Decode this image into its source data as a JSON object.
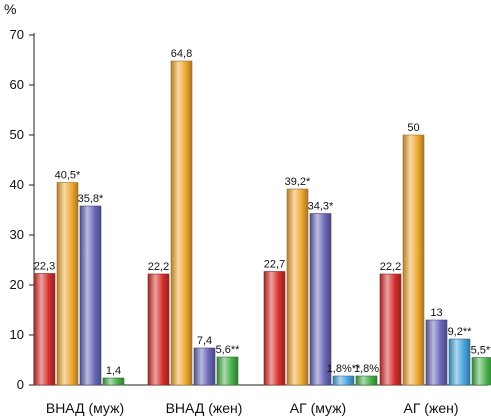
{
  "chart_data": {
    "type": "bar",
    "title": "",
    "xlabel": "",
    "ylabel": "%",
    "ylim": [
      0,
      70
    ],
    "yticks": [
      0,
      10,
      20,
      30,
      40,
      50,
      60,
      70
    ],
    "grid": false,
    "categories": [
      "ВНАД (муж)",
      "ВНАД (жен)",
      "АГ (муж)",
      "АГ (жен)"
    ],
    "series": [
      {
        "color": "#d6312e",
        "values": [
          22.3,
          22.2,
          22.7,
          22.2
        ],
        "labels": [
          "22,3",
          "22,2",
          "22,7",
          "22,2"
        ]
      },
      {
        "color": "#f0a935",
        "values": [
          40.5,
          64.8,
          39.2,
          50
        ],
        "labels": [
          "40,5*",
          "64,8",
          "39,2*",
          "50"
        ]
      },
      {
        "color": "#6a68b8",
        "values": [
          35.8,
          7.4,
          34.3,
          13
        ],
        "labels": [
          "35,8*",
          "7,4",
          "34,3*",
          "13"
        ]
      },
      {
        "color": "#4aa6e0",
        "values": [
          null,
          null,
          1.8,
          9.2
        ],
        "labels": [
          "",
          "",
          "1,8%**",
          "9,2**"
        ]
      },
      {
        "color": "#48b04a",
        "values": [
          1.4,
          5.6,
          1.8,
          5.5
        ],
        "labels": [
          "1,4",
          "5,6**",
          "1,8%",
          "5,5**"
        ]
      }
    ]
  }
}
